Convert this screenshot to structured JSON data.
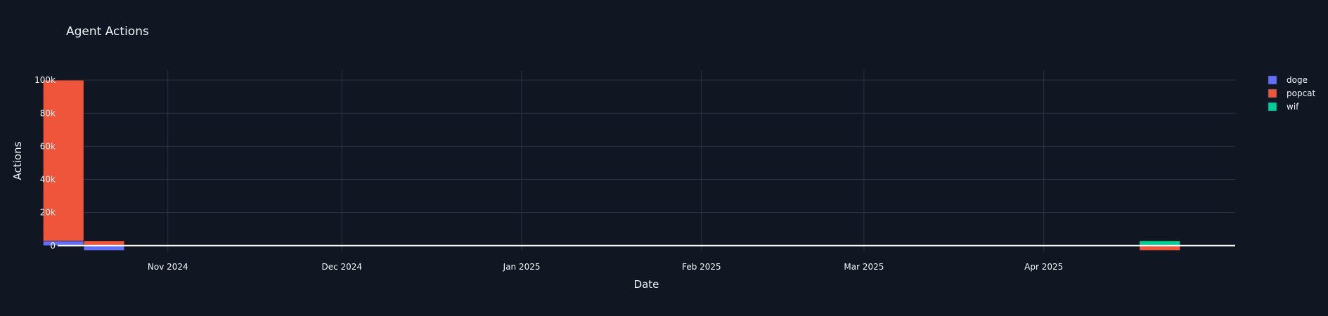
{
  "chart_data": {
    "type": "bar",
    "barmode": "relative",
    "title": "Agent Actions",
    "xlabel": "Date",
    "ylabel": "Actions",
    "x_axis": {
      "type": "date",
      "range": [
        "2024-10-13",
        "2025-05-04"
      ],
      "ticks": [
        {
          "date": "2024-11-01",
          "label": "Nov 2024"
        },
        {
          "date": "2024-12-01",
          "label": "Dec 2024"
        },
        {
          "date": "2025-01-01",
          "label": "Jan 2025"
        },
        {
          "date": "2025-02-01",
          "label": "Feb 2025"
        },
        {
          "date": "2025-03-01",
          "label": "Mar 2025"
        },
        {
          "date": "2025-04-01",
          "label": "Apr 2025"
        }
      ]
    },
    "y_axis": {
      "range": [
        -3500,
        106000
      ],
      "ticks": [
        {
          "value": 0,
          "label": "0"
        },
        {
          "value": 20000,
          "label": "20k"
        },
        {
          "value": 40000,
          "label": "40k"
        },
        {
          "value": 60000,
          "label": "60k"
        },
        {
          "value": 80000,
          "label": "80k"
        },
        {
          "value": 100000,
          "label": "100k"
        }
      ]
    },
    "grid": true,
    "legend_position": "top-right",
    "bin_width_days": 7,
    "series": [
      {
        "name": "doge",
        "color": "#636efa",
        "points": [
          {
            "x": "2024-10-14",
            "y": 2800
          },
          {
            "x": "2024-10-21",
            "y": -2900
          }
        ]
      },
      {
        "name": "popcat",
        "color": "#ef553b",
        "points": [
          {
            "x": "2024-10-14",
            "y": 97200
          },
          {
            "x": "2024-10-21",
            "y": 2900
          },
          {
            "x": "2025-04-21",
            "y": -2900
          }
        ]
      },
      {
        "name": "wif",
        "color": "#00cc96",
        "points": [
          {
            "x": "2025-04-21",
            "y": 2900
          }
        ]
      }
    ]
  }
}
